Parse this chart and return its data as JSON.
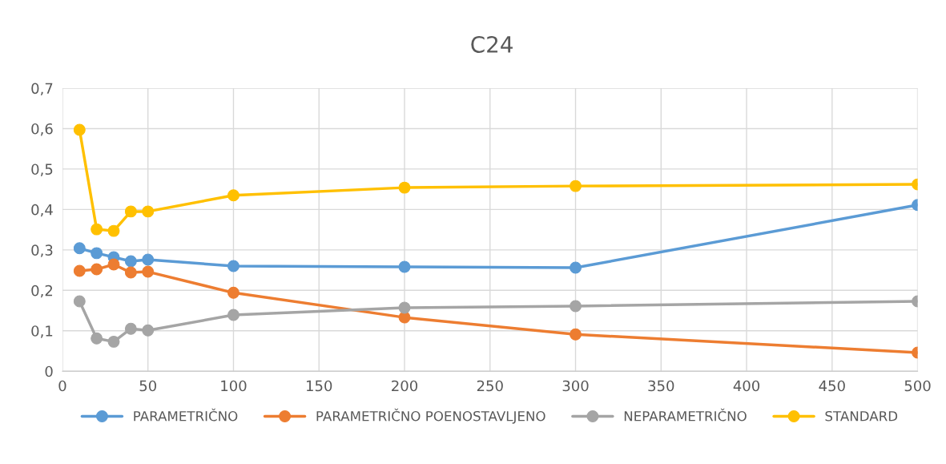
{
  "chart_data": {
    "type": "line",
    "title": "C24",
    "x": [
      10,
      20,
      30,
      40,
      50,
      100,
      200,
      300,
      500
    ],
    "series": [
      {
        "name": "PARAMETRIČNO",
        "color": "#5b9bd5",
        "values": [
          0.304,
          0.292,
          0.282,
          0.272,
          0.276,
          0.26,
          0.258,
          0.256,
          0.411
        ]
      },
      {
        "name": "PARAMETRIČNO POENOSTAVLJENO",
        "color": "#ed7d31",
        "values": [
          0.248,
          0.252,
          0.264,
          0.244,
          0.246,
          0.194,
          0.133,
          0.091,
          0.046
        ]
      },
      {
        "name": "NEPARAMETRIČNO",
        "color": "#a5a5a5",
        "values": [
          0.173,
          0.081,
          0.073,
          0.105,
          0.101,
          0.139,
          0.157,
          0.161,
          0.173
        ]
      },
      {
        "name": "STANDARD",
        "color": "#ffc000",
        "values": [
          0.597,
          0.351,
          0.347,
          0.395,
          0.395,
          0.435,
          0.454,
          0.458,
          0.462
        ]
      }
    ],
    "xlim": [
      0,
      500
    ],
    "xticks": [
      0,
      50,
      100,
      150,
      200,
      250,
      300,
      350,
      400,
      450,
      500
    ],
    "ylim": [
      0,
      0.7
    ],
    "yticks": [
      {
        "value": 0,
        "label": "0"
      },
      {
        "value": 0.1,
        "label": "0,1"
      },
      {
        "value": 0.2,
        "label": "0,2"
      },
      {
        "value": 0.3,
        "label": "0,3"
      },
      {
        "value": 0.4,
        "label": "0,4"
      },
      {
        "value": 0.5,
        "label": "0,5"
      },
      {
        "value": 0.6,
        "label": "0,6"
      },
      {
        "value": 0.7,
        "label": "0,7"
      }
    ],
    "grid": true,
    "legend": "bottom",
    "marker": "circle",
    "line_style": "solid"
  }
}
